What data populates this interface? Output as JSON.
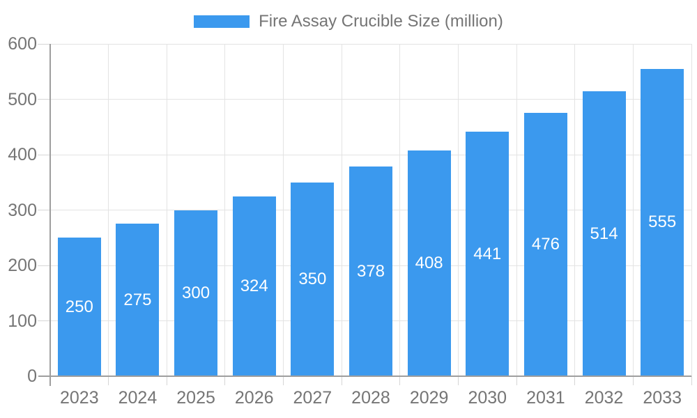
{
  "chart_data": {
    "type": "bar",
    "title": "Fire Assay Crucible Size (million)",
    "legend": {
      "position": "top",
      "label": "Fire Assay Crucible Size (million)"
    },
    "categories": [
      "2023",
      "2024",
      "2025",
      "2026",
      "2027",
      "2028",
      "2029",
      "2030",
      "2031",
      "2032",
      "2033"
    ],
    "series": [
      {
        "name": "Fire Assay Crucible Size (million)",
        "values": [
          250,
          275,
          300,
          324,
          350,
          378,
          408,
          441,
          476,
          514,
          555
        ]
      }
    ],
    "xlabel": "",
    "ylabel": "",
    "ylim": [
      0,
      600
    ],
    "yticks": [
      0,
      100,
      200,
      300,
      400,
      500,
      600
    ],
    "grid": true,
    "bar_value_labels_visible": true,
    "colors": {
      "bar": "#3B99EE",
      "bar_value_label": "#FFFFFF",
      "axis_text": "#757575",
      "grid_line": "#E3E3E3",
      "tick_line": "#D6D6D6",
      "axis_line": "#9E9E9E",
      "background": "#FFFFFF"
    }
  }
}
